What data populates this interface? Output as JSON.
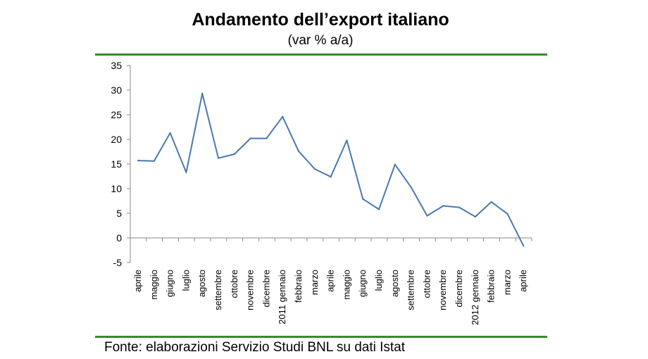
{
  "chart_data": {
    "type": "line",
    "title": "Andamento dell’export italiano",
    "subtitle": "(var % a/a)",
    "source": "Fonte: elaborazioni Servizio Studi BNL su dati Istat",
    "ylim": [
      -5,
      35
    ],
    "yticks": [
      35,
      30,
      25,
      20,
      15,
      10,
      5,
      0,
      -5
    ],
    "grid": false,
    "line_color": "#4a78b0",
    "rule_color": "#3a8a2e",
    "categories": [
      "aprile",
      "maggio",
      "giugno",
      "luglio",
      "agosto",
      "settembre",
      "ottobre",
      "novembre",
      "dicembre",
      "2011 gennaio",
      "febbraio",
      "marzo",
      "aprile",
      "maggio",
      "giugno",
      "luglio",
      "agosto",
      "settembre",
      "ottobre",
      "novembre",
      "dicembre",
      "2012 gennaio",
      "febbraio",
      "marzo",
      "aprile"
    ],
    "series": [
      {
        "values": [
          15.7,
          15.6,
          21.3,
          13.3,
          29.3,
          16.2,
          17.0,
          20.2,
          20.2,
          24.6,
          17.6,
          14.0,
          12.4,
          19.8,
          7.9,
          5.8,
          14.9,
          10.3,
          4.5,
          6.5,
          6.2,
          4.3,
          7.3,
          4.9,
          -1.6
        ]
      }
    ]
  }
}
